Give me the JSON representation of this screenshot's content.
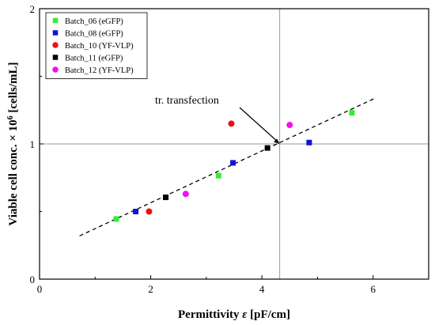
{
  "chart_data": {
    "type": "scatter",
    "xlabel_text": "Permittivity ",
    "xlabel_symbol": "ε",
    "xlabel_unit": " [pF/cm]",
    "ylabel_text": "Viable cell conc. × 10",
    "ylabel_exp": "6",
    "ylabel_unit": " [cells/mL]",
    "xlim": [
      0,
      7
    ],
    "ylim": [
      0,
      2
    ],
    "xticks": [
      0,
      2,
      4,
      6
    ],
    "yticks": [
      0,
      1,
      2
    ],
    "x_tick_labels": [
      "0",
      "2",
      "4",
      "6"
    ],
    "y_tick_labels": [
      "0",
      "1",
      "2"
    ],
    "legend_position": "top-left",
    "series": [
      {
        "name": "Batch_06 (eGFP)",
        "marker": "square",
        "color": "#33ee33",
        "points": [
          [
            1.38,
            0.445
          ],
          [
            3.22,
            0.765
          ],
          [
            5.62,
            1.23
          ]
        ]
      },
      {
        "name": "Batch_08 (eGFP)",
        "marker": "square",
        "color": "#1111dd",
        "points": [
          [
            1.73,
            0.5
          ],
          [
            3.48,
            0.86
          ],
          [
            4.85,
            1.01
          ]
        ]
      },
      {
        "name": "Batch_10 (YF-VLP)",
        "marker": "circle",
        "color": "#ee1111",
        "points": [
          [
            1.97,
            0.5
          ],
          [
            3.45,
            1.15
          ]
        ]
      },
      {
        "name": "Batch_11 (eGFP)",
        "marker": "square",
        "color": "#000000",
        "points": [
          [
            2.27,
            0.605
          ],
          [
            4.1,
            0.97
          ]
        ]
      },
      {
        "name": "Batch_12 (YF-VLP)",
        "marker": "circle",
        "color": "#ee11ee",
        "points": [
          [
            2.63,
            0.63
          ],
          [
            4.5,
            1.14
          ]
        ]
      }
    ],
    "fit_line": {
      "style": "dashed",
      "color": "#000000",
      "points": [
        [
          0.72,
          0.32
        ],
        [
          6.02,
          1.335
        ]
      ]
    },
    "reference_lines": {
      "vertical_x": 4.32,
      "horizontal_y": 1.0,
      "color": "#999999"
    },
    "annotation": {
      "text": "tr. transfection",
      "target": [
        4.32,
        1.0
      ]
    }
  }
}
